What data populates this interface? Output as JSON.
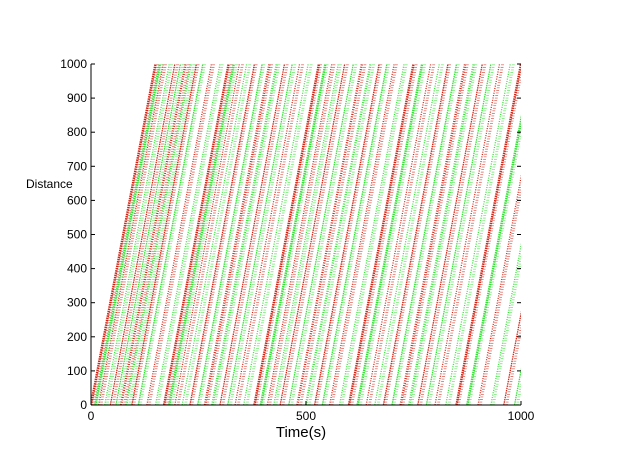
{
  "chart_data": {
    "type": "scatter",
    "title": "",
    "xlabel": "Time(s)",
    "ylabel": "Distance",
    "xlim": [
      0,
      1000
    ],
    "ylim": [
      0,
      1000
    ],
    "x_ticks": [
      0,
      500,
      1000
    ],
    "y_ticks": [
      0,
      100,
      200,
      300,
      400,
      500,
      600,
      700,
      800,
      900,
      1000
    ],
    "grid": false,
    "legend": "none",
    "colors": {
      "red": "#cc1100",
      "green": "#22dd22",
      "axis": "#000000"
    },
    "series": [
      {
        "color": "red",
        "description": "vehicle trajectories (distance vs time), slope ~6.7 distance units per second",
        "start_times": [
          0,
          18,
          45,
          70,
          95,
          130,
          170,
          195,
          230,
          265,
          300,
          335,
          380,
          410,
          440,
          480,
          520,
          555,
          600,
          640,
          680,
          720,
          760,
          800,
          850,
          900,
          960
        ]
      },
      {
        "color": "green",
        "description": "vehicle trajectories (distance vs time), slope ~6.7 distance units per second",
        "start_times": [
          10,
          32,
          58,
          82,
          110,
          150,
          182,
          212,
          248,
          282,
          318,
          355,
          395,
          425,
          460,
          500,
          538,
          578,
          620,
          660,
          700,
          740,
          780,
          825,
          875,
          930,
          985
        ]
      }
    ]
  }
}
